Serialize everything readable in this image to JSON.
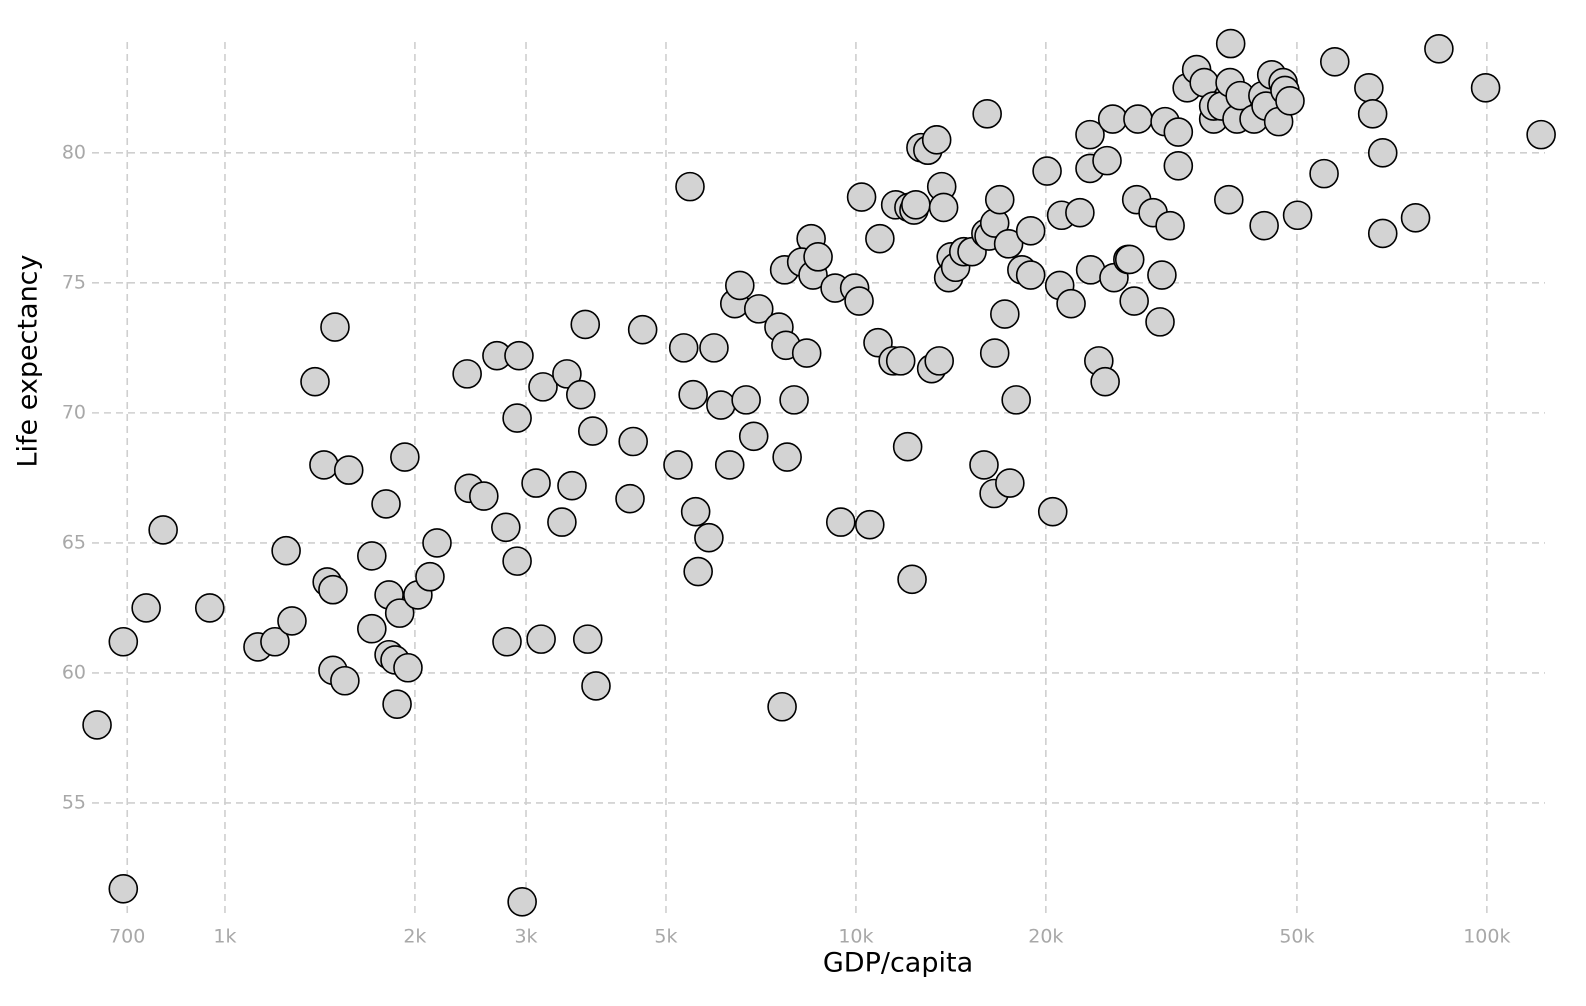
{
  "chart_data": {
    "type": "scatter",
    "x_label": "GDP/capita",
    "y_label": "Life expectancy",
    "x_log": true,
    "grid": true,
    "color": "#d3d3d3",
    "edge_color": "#000000",
    "xlim": [
      600,
      125000
    ],
    "ylim": [
      50.5,
      84.8
    ],
    "xticks": [
      700,
      {
        "value": 1000,
        "label": "1k"
      },
      {
        "value": 2000,
        "label": "2k"
      },
      {
        "value": 3000,
        "label": "3k"
      },
      {
        "value": 5000,
        "label": "5k"
      },
      {
        "value": 10000,
        "label": "10k"
      },
      {
        "value": 20000,
        "label": "20k"
      },
      {
        "value": 50000,
        "label": "50k"
      },
      {
        "value": 100000,
        "label": "100k"
      }
    ],
    "yticks": [
      55,
      60,
      65,
      70,
      75,
      80
    ],
    "x": [
      627,
      690,
      690,
      750,
      798,
      946,
      1128,
      1200,
      1250,
      1277,
      1389,
      1435,
      1452,
      1483,
      1483,
      1494,
      1549,
      1571,
      1709,
      1709,
      1800,
      1820,
      1820,
      1860,
      1874,
      1892,
      1928,
      1950,
      2022,
      2113,
      2168,
      2420,
      2438,
      2572,
      2698,
      2787,
      2799,
      2904,
      2904,
      2924,
      2958,
      3112,
      3170,
      3192,
      3420,
      3483,
      3548,
      3664,
      3724,
      3758,
      3828,
      3873,
      4385,
      4436,
      4592,
      5224,
      5334,
      5458,
      5521,
      5572,
      5623,
      5848,
      5957,
      6109,
      6310,
      6427,
      6546,
      6699,
      6887,
      7015,
      7551,
      7638,
      7709,
      7745,
      7780,
      7980,
      8356,
      8492,
      8204,
      8551,
      8710,
      9268,
      9462,
      9954,
      10116,
      10209,
      10520,
      10839,
      10914,
      11455,
      11561,
      11776,
      12078,
      12134,
      12274,
      12359,
      12445,
      12677,
      13002,
      13183,
      13428,
      13552,
      13677,
      13772,
      14028,
      14158,
      14388,
      14825,
      15276,
      15959,
      16069,
      16144,
      16255,
      16558,
      16596,
      16596,
      16904,
      17219,
      17458,
      17539,
      17947,
      18323,
      18923,
      18923,
      20090,
      20510,
      21038,
      21184,
      21928,
      22646,
      23496,
      23496,
      23550,
      24266,
      24831,
      25003,
      25527,
      25645,
      26977,
      27164,
      27606,
      27861,
      27990,
      29580,
      30339,
      30549,
      30903,
      31477,
      32433,
      32433,
      33497,
      34674,
      35645,
      36898,
      36898,
      38010,
      38995,
      39174,
      39264,
      40179,
      40644,
      42756,
      44157,
      44361,
      44668,
      45604,
      46774,
      47534,
      47863,
      48753,
      50119,
      55208,
      57412,
      65013,
      65917,
      68391,
      68391,
      77090,
      83946,
      99540,
      121900
    ],
    "values": [
      58.0,
      51.7,
      61.2,
      62.5,
      65.5,
      62.5,
      61.0,
      61.2,
      64.7,
      62.0,
      71.2,
      68.0,
      63.5,
      63.2,
      60.1,
      73.3,
      59.7,
      67.8,
      64.5,
      61.7,
      66.5,
      63.0,
      60.7,
      60.5,
      58.8,
      62.3,
      68.3,
      60.2,
      63.0,
      63.7,
      65.0,
      71.5,
      67.1,
      66.8,
      72.2,
      65.6,
      61.2,
      64.3,
      69.8,
      72.2,
      51.2,
      67.3,
      61.3,
      71.0,
      65.8,
      71.5,
      67.2,
      70.7,
      73.4,
      61.3,
      69.3,
      59.5,
      66.7,
      68.9,
      73.2,
      68.0,
      72.5,
      78.7,
      70.7,
      66.2,
      63.9,
      65.2,
      72.5,
      70.3,
      68.0,
      74.2,
      74.9,
      70.5,
      69.1,
      74.0,
      73.3,
      58.7,
      75.5,
      72.6,
      68.3,
      70.5,
      72.3,
      76.7,
      75.8,
      75.3,
      76.0,
      74.8,
      65.8,
      74.8,
      74.3,
      78.3,
      65.7,
      72.7,
      76.7,
      72.0,
      78.0,
      72.0,
      68.7,
      77.9,
      63.6,
      77.8,
      78.0,
      80.2,
      80.1,
      71.7,
      80.5,
      72.0,
      78.7,
      77.9,
      75.2,
      76.0,
      75.6,
      76.2,
      76.2,
      68.0,
      76.9,
      81.5,
      76.8,
      66.9,
      72.3,
      77.3,
      78.2,
      73.8,
      76.5,
      67.3,
      70.5,
      75.5,
      75.3,
      77.0,
      79.3,
      66.2,
      74.9,
      77.6,
      74.2,
      77.7,
      79.4,
      80.7,
      75.5,
      72.0,
      71.2,
      79.7,
      81.3,
      75.2,
      75.9,
      75.9,
      74.3,
      78.2,
      81.3,
      77.7,
      73.5,
      75.3,
      81.2,
      77.2,
      80.8,
      79.5,
      82.5,
      83.2,
      82.7,
      81.3,
      81.8,
      81.8,
      78.2,
      82.7,
      84.2,
      81.3,
      82.2,
      81.3,
      82.2,
      77.2,
      81.8,
      83.0,
      81.2,
      82.7,
      82.4,
      82.0,
      77.6,
      79.2,
      83.5,
      82.5,
      81.5,
      76.9,
      80.0,
      77.5,
      84.0,
      82.5,
      80.7
    ]
  }
}
